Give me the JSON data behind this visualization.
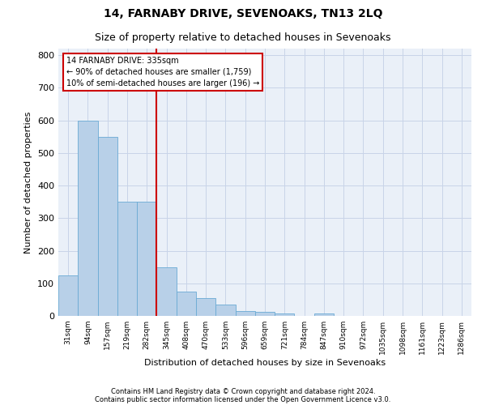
{
  "title": "14, FARNABY DRIVE, SEVENOAKS, TN13 2LQ",
  "subtitle": "Size of property relative to detached houses in Sevenoaks",
  "xlabel": "Distribution of detached houses by size in Sevenoaks",
  "ylabel": "Number of detached properties",
  "categories": [
    "31sqm",
    "94sqm",
    "157sqm",
    "219sqm",
    "282sqm",
    "345sqm",
    "408sqm",
    "470sqm",
    "533sqm",
    "596sqm",
    "659sqm",
    "721sqm",
    "784sqm",
    "847sqm",
    "910sqm",
    "972sqm",
    "1035sqm",
    "1098sqm",
    "1161sqm",
    "1223sqm",
    "1286sqm"
  ],
  "values": [
    125,
    600,
    550,
    350,
    350,
    150,
    75,
    55,
    35,
    15,
    12,
    8,
    0,
    8,
    0,
    0,
    0,
    0,
    0,
    0,
    0
  ],
  "bar_color": "#b8d0e8",
  "bar_edge_color": "#6aaad4",
  "red_line_x": 4.5,
  "annotation_line1": "14 FARNABY DRIVE: 335sqm",
  "annotation_line2": "← 90% of detached houses are smaller (1,759)",
  "annotation_line3": "10% of semi-detached houses are larger (196) →",
  "annotation_box_color": "#ffffff",
  "annotation_box_edge_color": "#cc0000",
  "red_line_color": "#cc0000",
  "ylim": [
    0,
    820
  ],
  "yticks": [
    0,
    100,
    200,
    300,
    400,
    500,
    600,
    700,
    800
  ],
  "grid_color": "#c8d4e8",
  "bg_color": "#eaf0f8",
  "footer_line1": "Contains HM Land Registry data © Crown copyright and database right 2024.",
  "footer_line2": "Contains public sector information licensed under the Open Government Licence v3.0.",
  "title_fontsize": 10,
  "subtitle_fontsize": 9
}
